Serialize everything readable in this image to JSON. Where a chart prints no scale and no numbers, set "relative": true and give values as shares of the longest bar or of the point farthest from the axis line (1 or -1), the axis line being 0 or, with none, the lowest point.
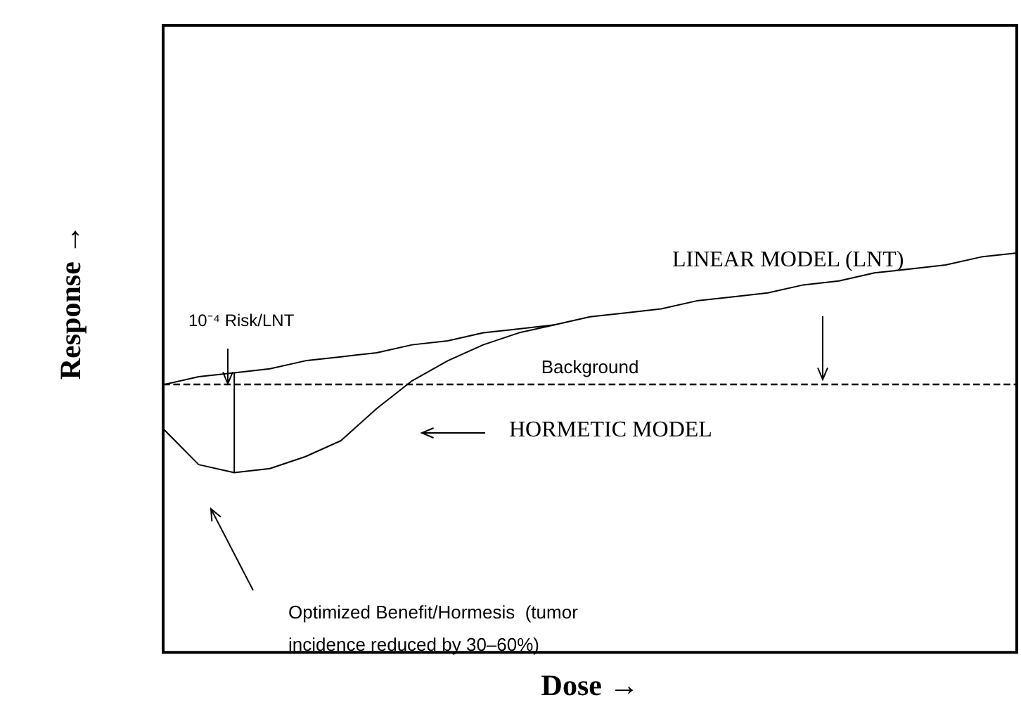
{
  "chart_data": {
    "type": "line",
    "relative": true,
    "xlabel": "Dose →",
    "ylabel": "Response →",
    "categories": [
      null,
      null,
      null,
      null,
      null,
      null,
      null,
      null,
      null,
      null,
      null,
      null,
      null,
      null,
      null,
      null,
      null,
      null,
      null,
      null,
      null,
      null,
      null,
      null,
      null
    ],
    "series": [
      {
        "color": "#000000",
        "values": [
          0.67,
          0.69,
          0.7,
          0.71,
          0.73,
          0.74,
          0.75,
          0.77,
          0.78,
          0.8,
          0.81,
          0.82,
          0.84,
          0.85,
          0.86,
          0.88,
          0.89,
          0.9,
          0.92,
          0.93,
          0.95,
          0.96,
          0.97,
          0.99,
          1.0
        ]
      },
      {
        "color": "#000000",
        "values": [
          0.56,
          0.47,
          0.45,
          0.46,
          0.49,
          0.53,
          0.61,
          0.68,
          0.73,
          0.77,
          0.8,
          0.82,
          null,
          null,
          null,
          null,
          null,
          null,
          null,
          null,
          null,
          null,
          null,
          null,
          null
        ]
      }
    ],
    "ref_lines": [
      {
        "axis": "y",
        "value": 0.67,
        "label": "Background",
        "line_style": "dashed",
        "color": "#000000"
      }
    ],
    "annotations": [
      "LINEAR MODEL (LNT)",
      "HORMETIC MODEL",
      "10⁻⁴ Risk/LNT",
      "Optimized Benefit/Hormesis  (tumor incidence reduced by 30–60%)"
    ],
    "grid": false,
    "marker": "none",
    "line_style": "solid"
  }
}
